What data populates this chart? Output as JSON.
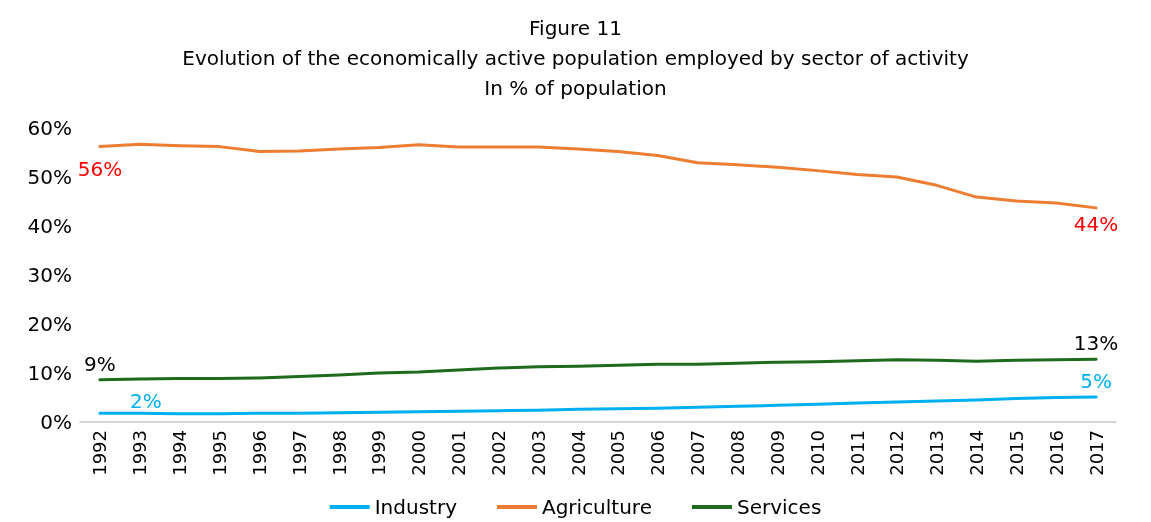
{
  "chart_data": {
    "type": "line",
    "title": "Figure 11\nEvolution of the economically active population employed by sector of activity\nIn % of population",
    "categories": [
      "1992",
      "1993",
      "1994",
      "1995",
      "1996",
      "1997",
      "1998",
      "1999",
      "2000",
      "2001",
      "2002",
      "2003",
      "2004",
      "2005",
      "2006",
      "2007",
      "2008",
      "2009",
      "2010",
      "2011",
      "2012",
      "2013",
      "2014",
      "2015",
      "2016",
      "2017"
    ],
    "series": [
      {
        "name": "Industry",
        "color": "#00b0f0",
        "values": [
          1.8,
          1.8,
          1.7,
          1.7,
          1.8,
          1.8,
          1.9,
          2.0,
          2.1,
          2.2,
          2.3,
          2.4,
          2.6,
          2.7,
          2.8,
          3.0,
          3.2,
          3.4,
          3.6,
          3.9,
          4.1,
          4.3,
          4.5,
          4.8,
          5.0,
          5.1
        ],
        "value_labels": [
          "2%",
          null,
          null,
          null,
          null,
          null,
          null,
          null,
          null,
          null,
          null,
          null,
          null,
          null,
          null,
          null,
          null,
          null,
          null,
          null,
          null,
          null,
          null,
          null,
          null,
          "5%"
        ]
      },
      {
        "name": "Agriculture",
        "color": "#ed7d31",
        "values": [
          56.2,
          56.7,
          56.4,
          56.2,
          55.2,
          55.3,
          55.7,
          56.0,
          56.6,
          56.1,
          56.1,
          56.1,
          55.7,
          55.2,
          54.4,
          52.9,
          52.5,
          52.0,
          51.3,
          50.5,
          50.0,
          48.3,
          45.9,
          45.1,
          44.7,
          43.7
        ],
        "value_labels": [
          "56%",
          null,
          null,
          null,
          null,
          null,
          null,
          null,
          null,
          null,
          null,
          null,
          null,
          null,
          null,
          null,
          null,
          null,
          null,
          null,
          null,
          null,
          null,
          null,
          null,
          "44%"
        ]
      },
      {
        "name": "Services",
        "color": "#1e6b1e",
        "values": [
          8.6,
          8.8,
          8.9,
          8.9,
          9.0,
          9.3,
          9.6,
          10.0,
          10.2,
          10.6,
          11.0,
          11.3,
          11.4,
          11.6,
          11.8,
          11.8,
          12.0,
          12.2,
          12.3,
          12.5,
          12.7,
          12.6,
          12.4,
          12.6,
          12.7,
          12.8
        ],
        "value_labels": [
          "9%",
          null,
          null,
          null,
          null,
          null,
          null,
          null,
          null,
          null,
          null,
          null,
          null,
          null,
          null,
          null,
          null,
          null,
          null,
          null,
          null,
          null,
          null,
          null,
          null,
          "13%"
        ]
      }
    ],
    "ylim": [
      0,
      60
    ],
    "yticks": [
      {
        "value": 0,
        "label": "0%"
      },
      {
        "value": 10,
        "label": "10%"
      },
      {
        "value": 20,
        "label": "20%"
      },
      {
        "value": 30,
        "label": "30%"
      },
      {
        "value": 40,
        "label": "40%"
      },
      {
        "value": 50,
        "label": "50%"
      },
      {
        "value": 60,
        "label": "60%"
      }
    ],
    "grid": false,
    "legend": "bottom",
    "marker": "none",
    "line_style": "solid"
  }
}
